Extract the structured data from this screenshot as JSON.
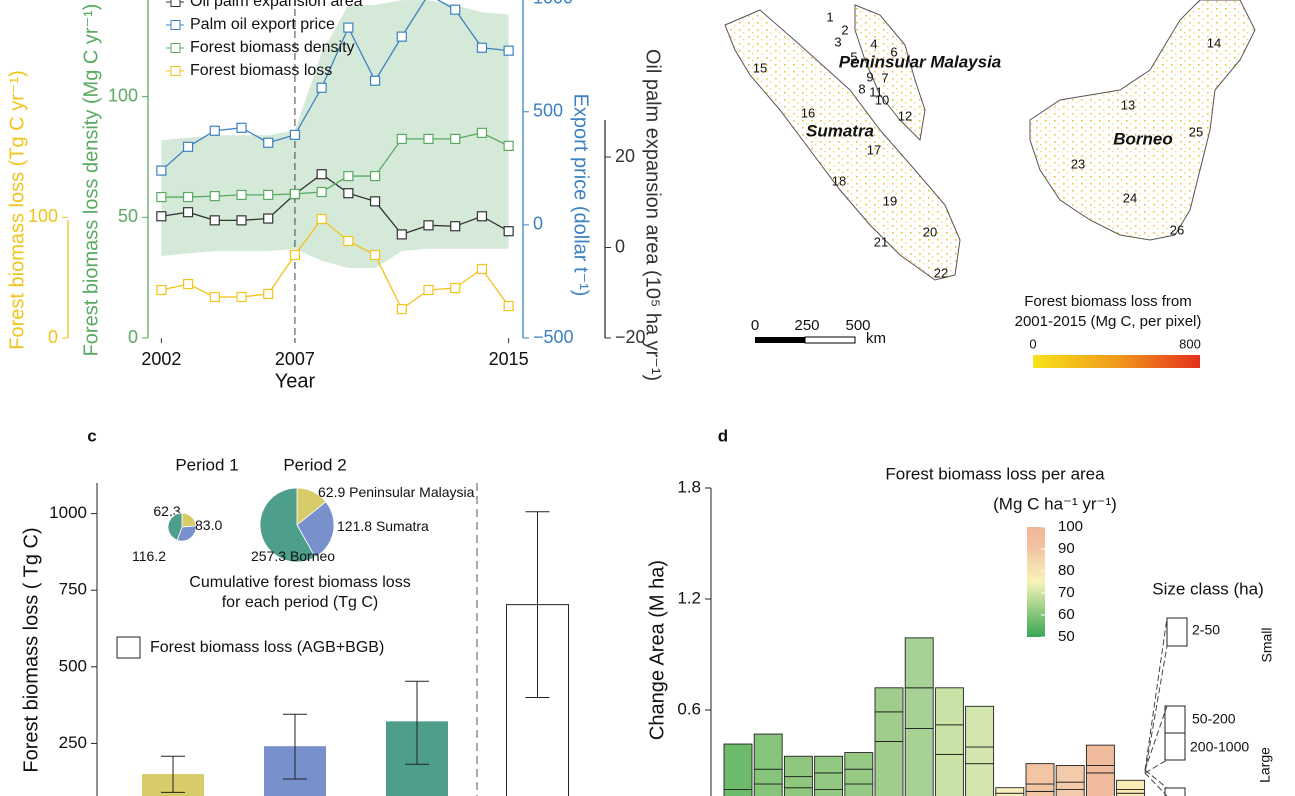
{
  "chart_data": [
    {
      "type": "line",
      "xlabel": "Year",
      "x": [
        2002,
        2003,
        2004,
        2005,
        2006,
        2007,
        2008,
        2009,
        2010,
        2011,
        2012,
        2013,
        2014,
        2015
      ],
      "xlim": [
        2001.5,
        2015.5
      ],
      "xticks": [
        2002,
        2007,
        2015
      ],
      "vline": 2007,
      "axes": [
        {
          "label": "Forest biomass loss density (Mg C yr⁻¹)",
          "color": "#5aaa62",
          "lim": [
            0,
            150
          ],
          "ticks": [
            0,
            50,
            100
          ]
        },
        {
          "label": "Export price (dollar t⁻¹)",
          "color": "#3c82c0",
          "lim": [
            -500,
            1100
          ],
          "ticks": [
            {
              "value": -500,
              "label": "−500"
            },
            0,
            500,
            1000
          ]
        },
        {
          "label": "Forest biomass loss (Tg C yr⁻¹)",
          "color": "#f0c419",
          "lim": [
            0,
            300
          ],
          "ticks": [
            0,
            100
          ]
        },
        {
          "label": "Oil palm expansion area (10⁵ ha yr⁻¹)",
          "color": "#333333",
          "lim": [
            -20,
            60
          ],
          "ticks": [
            {
              "value": -20,
              "label": "−20"
            },
            0,
            20
          ]
        }
      ],
      "series": [
        {
          "name": "Oil palm expansion area",
          "color": "#333333",
          "axis": 3,
          "values": [
            6.9,
            7.8,
            6,
            6,
            6.4,
            11.8,
            16.2,
            12,
            10.2,
            2.9,
            4.9,
            4.7,
            6.9,
            3.6
          ]
        },
        {
          "name": "Palm oil export price",
          "color": "#3c82c0",
          "axis": 1,
          "values": [
            240,
            345,
            416,
            429,
            363,
            398,
            606,
            872,
            637,
            832,
            1018,
            951,
            783,
            770
          ]
        },
        {
          "name": "Forest biomass density",
          "color": "#5aaa62",
          "axis": 0,
          "values": [
            58.4,
            58.4,
            58.8,
            59.3,
            59.3,
            59.7,
            60.5,
            67.1,
            67.1,
            82.5,
            82.5,
            82.5,
            85,
            79.6
          ],
          "band_upper": [
            82,
            83,
            84,
            84,
            84,
            86,
            118,
            138,
            138,
            140,
            140,
            138,
            135,
            134
          ],
          "band_lower": [
            34,
            35,
            36,
            36,
            36,
            37,
            32,
            29,
            29,
            36,
            37,
            37,
            37,
            37
          ],
          "band_color": "#d5e9d9"
        },
        {
          "name": "Forest biomass loss",
          "color": "#f0c419",
          "axis": 2,
          "values": [
            39.8,
            44.7,
            34,
            34,
            36.5,
            68.8,
            98.6,
            80.4,
            68.8,
            24,
            39.8,
            41.4,
            57.2,
            26.5
          ]
        }
      ]
    },
    {
      "type": "bar",
      "panel": "c",
      "ylabel": "Forest biomass loss  ( Tg C)",
      "ylim": [
        0,
        1100
      ],
      "yticks": [
        250,
        500,
        750,
        1000
      ],
      "categories": [
        null,
        null,
        null,
        null
      ],
      "values": [
        150,
        241,
        322,
        703
      ],
      "error_range": [
        [
          90,
          208
        ],
        [
          134,
          345
        ],
        [
          182,
          453
        ],
        [
          400,
          1006
        ]
      ],
      "colors": [
        "#d8cb6a",
        "#7891cc",
        "#4e9e8c",
        "#ffffff"
      ],
      "legend": "Forest biomass loss (AGB+BGB)",
      "pies": [
        {
          "title": "Period 1",
          "values": [
            62.3,
            83.0,
            116.2
          ],
          "value_labels": [
            "62.3",
            "83.0",
            "116.2"
          ]
        },
        {
          "title": "Period 2",
          "values": [
            62.9,
            121.8,
            257.3
          ],
          "names": [
            "Peninsular Malaysia",
            "Sumatra",
            "Borneo"
          ]
        }
      ],
      "pie_colors": [
        "#d8cb6a",
        "#7891cc",
        "#4e9e8c"
      ],
      "pie_caption": [
        "Cumulative forest biomass loss",
        "for each period (Tg C)"
      ]
    },
    {
      "type": "stacked_bar",
      "panel": "d",
      "title": "Forest biomass loss per area",
      "ylabel": "Change Area (M ha)",
      "ylim": [
        0,
        1.8
      ],
      "yticks": [
        0.6,
        1.2,
        1.8
      ],
      "categories": [
        null,
        null,
        null,
        null,
        null,
        null,
        null,
        null,
        null,
        null,
        null,
        null,
        null,
        null
      ],
      "series": [
        {
          "name": "200-1000",
          "values": [
            0.12,
            0.2,
            0.18,
            0.17,
            0.2,
            0.43,
            0.5,
            0.36,
            0.31,
            0.13,
            0.16,
            0.17,
            0.26,
            0.15
          ]
        },
        {
          "name": "50-200",
          "values": [
            0.05,
            0.08,
            0.06,
            0.09,
            0.08,
            0.16,
            0.22,
            0.16,
            0.09,
            0.02,
            0.04,
            0.04,
            0.04,
            0.02
          ]
        },
        {
          "name": "2-50",
          "values": [
            0.246,
            0.19,
            0.11,
            0.09,
            0.09,
            0.13,
            0.27,
            0.2,
            0.22,
            0.03,
            0.11,
            0.09,
            0.11,
            0.05
          ]
        }
      ],
      "bar_colors": [
        "#6dbb6a",
        "#86c47b",
        "#8fc77f",
        "#93c882",
        "#95c984",
        "#9fce8c",
        "#a8d295",
        "#c9e2a6",
        "#d2e6ad",
        "#f7f0bd",
        "#f3c5a5",
        "#f4cbaa",
        "#f0bb9c",
        "#f8ecb4"
      ],
      "colorbar": {
        "title": "(Mg C ha⁻¹ yr⁻¹)",
        "lim": [
          50,
          100
        ],
        "ticks": [
          50,
          60,
          70,
          80,
          90,
          100
        ]
      },
      "size_legend": {
        "title": "Size class (ha)",
        "groups": [
          "Small",
          "Large"
        ]
      }
    }
  ],
  "map": {
    "regions": [
      1,
      2,
      3,
      4,
      5,
      6,
      7,
      8,
      9,
      10,
      11,
      12,
      13,
      14,
      15,
      16,
      17,
      18,
      19,
      20,
      21,
      22,
      23,
      24,
      25,
      26
    ],
    "islands": [
      "Peninsular Malaysia",
      "Sumatra",
      "Borneo"
    ],
    "scale": [
      0,
      250,
      500
    ],
    "scale_unit": "km",
    "colorbar_title": [
      "Forest biomass loss from",
      "2001-2015 (Mg C, per pixel)"
    ],
    "colorbar_ticks": [
      0,
      800
    ]
  }
}
